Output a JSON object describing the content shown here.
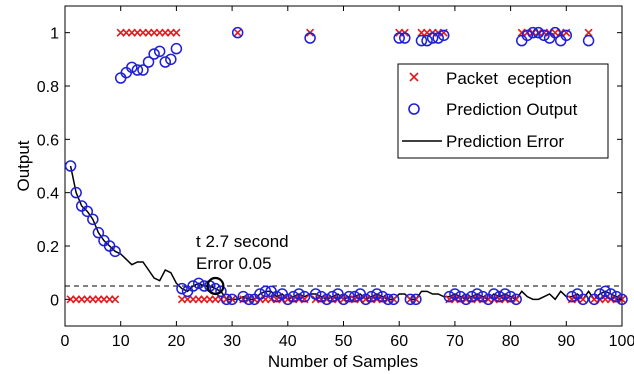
{
  "chart_data": {
    "type": "scatter",
    "xlabel": "Number of Samples",
    "ylabel": "Output",
    "xlim": [
      0,
      100
    ],
    "ylim": [
      -0.1,
      1.1
    ],
    "xticks": [
      0,
      10,
      20,
      30,
      40,
      50,
      60,
      70,
      80,
      90,
      100
    ],
    "yticks": [
      0,
      0.2,
      0.4,
      0.6,
      0.8,
      1
    ],
    "grid": false,
    "legend_position": "right",
    "threshold": 0.05,
    "annotation": {
      "line1": "t 2.7 second",
      "line2": "Error 0.05",
      "x": 27,
      "y": 0.05
    },
    "series": [
      {
        "name": "Packet  eception",
        "marker": "x",
        "color": "#e41a1c",
        "x": [
          1,
          2,
          3,
          4,
          5,
          6,
          7,
          8,
          9,
          10,
          11,
          12,
          13,
          14,
          15,
          16,
          17,
          18,
          19,
          20,
          21,
          22,
          23,
          24,
          25,
          26,
          27,
          28,
          29,
          30,
          31,
          32,
          33,
          34,
          35,
          36,
          37,
          38,
          39,
          40,
          41,
          42,
          43,
          44,
          45,
          46,
          47,
          48,
          49,
          50,
          51,
          52,
          53,
          54,
          55,
          56,
          57,
          58,
          59,
          60,
          61,
          62,
          63,
          64,
          65,
          66,
          67,
          68,
          69,
          70,
          71,
          72,
          73,
          74,
          75,
          76,
          77,
          78,
          79,
          80,
          81,
          82,
          83,
          84,
          85,
          86,
          87,
          88,
          89,
          90,
          91,
          92,
          93,
          94,
          95,
          96,
          97,
          98,
          99,
          100
        ],
        "y": [
          0,
          0,
          0,
          0,
          0,
          0,
          0,
          0,
          0,
          1,
          1,
          1,
          1,
          1,
          1,
          1,
          1,
          1,
          1,
          1,
          0,
          0,
          0,
          0,
          0,
          0,
          0,
          0,
          0,
          0,
          1,
          0,
          0,
          0,
          0,
          0,
          0,
          0,
          0,
          0,
          0,
          0,
          0,
          1,
          0,
          0,
          0,
          0,
          0,
          0,
          0,
          0,
          0,
          0,
          0,
          0,
          0,
          0,
          0,
          1,
          1,
          0,
          0,
          1,
          1,
          1,
          1,
          1,
          0,
          0,
          0,
          0,
          0,
          0,
          0,
          0,
          0,
          0,
          0,
          0,
          0,
          1,
          1,
          1,
          1,
          1,
          1,
          1,
          1,
          1,
          0,
          0,
          0,
          1,
          0,
          0,
          0,
          0,
          0,
          0
        ]
      },
      {
        "name": "Prediction Output",
        "marker": "o",
        "color": "#1f1fd6",
        "x": [
          1,
          2,
          3,
          4,
          5,
          6,
          7,
          8,
          9,
          10,
          11,
          12,
          13,
          14,
          15,
          16,
          17,
          18,
          19,
          20,
          21,
          22,
          23,
          24,
          25,
          26,
          27,
          28,
          29,
          30,
          31,
          32,
          33,
          34,
          35,
          36,
          37,
          38,
          39,
          40,
          41,
          42,
          43,
          44,
          45,
          46,
          47,
          48,
          49,
          50,
          51,
          52,
          53,
          54,
          55,
          56,
          57,
          58,
          59,
          60,
          61,
          62,
          63,
          64,
          65,
          66,
          67,
          68,
          69,
          70,
          71,
          72,
          73,
          74,
          75,
          76,
          77,
          78,
          79,
          80,
          81,
          82,
          83,
          84,
          85,
          86,
          87,
          88,
          89,
          90,
          91,
          92,
          93,
          94,
          95,
          96,
          97,
          98,
          99,
          100
        ],
        "y": [
          0.5,
          0.4,
          0.35,
          0.33,
          0.3,
          0.25,
          0.22,
          0.2,
          0.18,
          0.83,
          0.85,
          0.87,
          0.86,
          0.86,
          0.89,
          0.92,
          0.93,
          0.89,
          0.9,
          0.94,
          0.04,
          0.03,
          0.05,
          0.06,
          0.05,
          0.05,
          0.04,
          0.03,
          0.0,
          0.0,
          1.0,
          0.01,
          0.0,
          0.0,
          0.02,
          0.03,
          0.03,
          0.01,
          0.02,
          0.0,
          0.01,
          0.02,
          0.01,
          0.98,
          0.02,
          0.01,
          0.0,
          0.01,
          0.02,
          0.0,
          0.01,
          0.01,
          0.02,
          0.0,
          0.01,
          0.02,
          0.01,
          0.0,
          0.0,
          0.98,
          0.98,
          0.0,
          0.0,
          0.97,
          0.97,
          0.98,
          0.98,
          0.99,
          0.01,
          0.02,
          0.01,
          0.0,
          0.01,
          0.02,
          0.01,
          0.0,
          0.02,
          0.01,
          0.02,
          0.01,
          0.0,
          0.97,
          0.99,
          1.0,
          1.0,
          0.99,
          0.98,
          1.0,
          0.97,
          0.99,
          0.01,
          0.02,
          0.0,
          0.97,
          0.0,
          0.02,
          0.03,
          0.02,
          0.01,
          0.0
        ]
      },
      {
        "name": "Prediction Error",
        "marker": "line",
        "color": "#000000",
        "x": [
          1,
          2,
          3,
          4,
          5,
          6,
          7,
          8,
          9,
          10,
          11,
          12,
          13,
          14,
          15,
          16,
          17,
          18,
          19,
          20,
          21,
          22,
          23,
          24,
          25,
          26,
          27,
          28,
          29,
          30,
          31,
          32,
          33,
          34,
          35,
          36,
          37,
          38,
          39,
          40,
          41,
          42,
          43,
          44,
          45,
          46,
          47,
          48,
          49,
          50,
          51,
          52,
          53,
          54,
          55,
          56,
          57,
          58,
          59,
          60,
          61,
          62,
          63,
          64,
          65,
          66,
          67,
          68,
          69,
          70,
          71,
          72,
          73,
          74,
          75,
          76,
          77,
          78,
          79,
          80,
          81,
          82,
          83,
          84,
          85,
          86,
          87,
          88,
          89,
          90,
          91,
          92,
          93,
          94,
          95,
          96,
          97,
          98,
          99,
          100
        ],
        "y": [
          0.5,
          0.4,
          0.35,
          0.33,
          0.3,
          0.25,
          0.22,
          0.2,
          0.18,
          0.17,
          0.15,
          0.13,
          0.14,
          0.14,
          0.11,
          0.08,
          0.07,
          0.11,
          0.1,
          0.06,
          0.04,
          0.03,
          0.05,
          0.06,
          0.05,
          0.05,
          0.04,
          0.03,
          0.0,
          0.0,
          0.0,
          0.01,
          0.0,
          0.0,
          0.02,
          0.03,
          0.03,
          0.01,
          0.02,
          0.0,
          0.01,
          0.02,
          0.01,
          0.02,
          0.02,
          0.01,
          0.0,
          0.01,
          0.02,
          0.0,
          0.01,
          0.01,
          0.02,
          0.0,
          0.01,
          0.02,
          0.01,
          0.0,
          0.0,
          0.02,
          0.02,
          0.0,
          0.0,
          0.03,
          0.03,
          0.02,
          0.02,
          0.01,
          0.01,
          0.02,
          0.01,
          0.0,
          0.01,
          0.02,
          0.01,
          0.0,
          0.02,
          0.01,
          0.02,
          0.01,
          0.0,
          0.03,
          0.01,
          0.0,
          0.0,
          0.01,
          0.02,
          0.0,
          0.03,
          0.01,
          0.01,
          0.02,
          0.0,
          0.03,
          0.0,
          0.02,
          0.03,
          0.02,
          0.01,
          0.0
        ]
      }
    ]
  }
}
